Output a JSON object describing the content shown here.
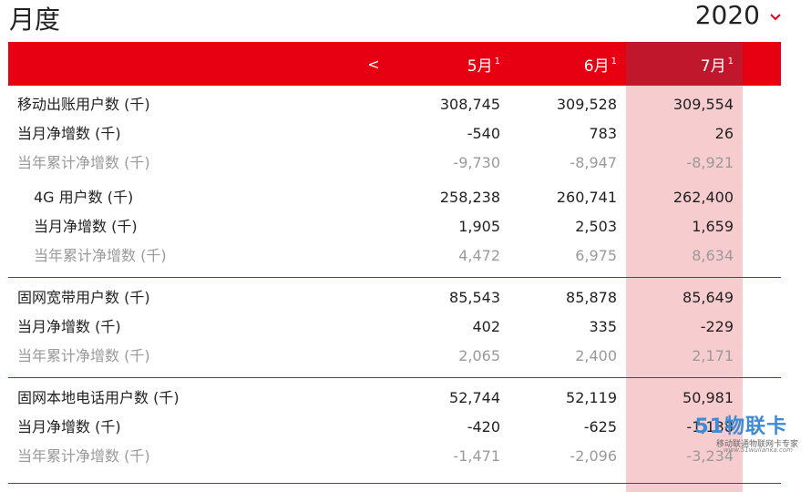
{
  "header": {
    "title": "月度",
    "year": "2020"
  },
  "table": {
    "prev_label": "<",
    "columns": [
      {
        "month": "5月",
        "note": "1"
      },
      {
        "month": "6月",
        "note": "1"
      },
      {
        "month": "7月",
        "note": "1"
      }
    ],
    "groups": [
      {
        "rows": [
          {
            "label": "移动出账用户数 (千)",
            "values": [
              "308,745",
              "309,528",
              "309,554"
            ],
            "style": "primary"
          },
          {
            "label": "当月净增数 (千)",
            "values": [
              "-540",
              "783",
              "26"
            ],
            "style": "primary"
          },
          {
            "label": "当年累计净增数 (千)",
            "values": [
              "-9,730",
              "-8,947",
              "-8,921"
            ],
            "style": "muted"
          }
        ],
        "sub_rows": [
          {
            "label": "4G 用户数 (千)",
            "values": [
              "258,238",
              "260,741",
              "262,400"
            ],
            "style": "primary"
          },
          {
            "label": "当月净增数 (千)",
            "values": [
              "1,905",
              "2,503",
              "1,659"
            ],
            "style": "primary"
          },
          {
            "label": "当年累计净增数 (千)",
            "values": [
              "4,472",
              "6,975",
              "8,634"
            ],
            "style": "muted"
          }
        ]
      },
      {
        "rows": [
          {
            "label": "固网宽带用户数 (千)",
            "values": [
              "85,543",
              "85,878",
              "85,649"
            ],
            "style": "primary"
          },
          {
            "label": "当月净增数 (千)",
            "values": [
              "402",
              "335",
              "-229"
            ],
            "style": "primary"
          },
          {
            "label": "当年累计净增数 (千)",
            "values": [
              "2,065",
              "2,400",
              "2,171"
            ],
            "style": "muted"
          }
        ]
      },
      {
        "rows": [
          {
            "label": "固网本地电话用户数 (千)",
            "values": [
              "52,744",
              "52,119",
              "50,981"
            ],
            "style": "primary"
          },
          {
            "label": "当月净增数 (千)",
            "values": [
              "-420",
              "-625",
              "-1,138"
            ],
            "style": "primary"
          },
          {
            "label": "当年累计净增数 (千)",
            "values": [
              "-1,471",
              "-2,096",
              "-3,234"
            ],
            "style": "muted"
          }
        ]
      }
    ]
  },
  "watermark": {
    "main": "51物联卡",
    "sub": "移动联通物联网卡专家",
    "url": "www.51wulianka.com"
  },
  "colors": {
    "accent": "#e60012",
    "highlight_header": "#c1172d",
    "highlight_column": "#f6cccf"
  },
  "icons": {
    "year_dropdown": "chevron-down-icon"
  }
}
